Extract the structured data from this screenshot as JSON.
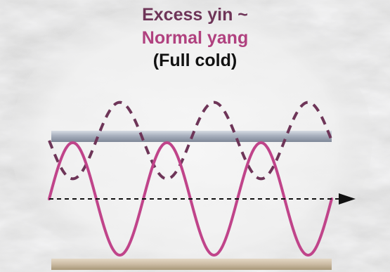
{
  "title": {
    "line1": "Excess yin ~",
    "line2": "Normal yang",
    "line3": "(Full cold)"
  },
  "colors": {
    "line1": "#6e3558",
    "line2": "#b0417f",
    "line3": "#111111",
    "yin_wave": "#c0448a",
    "yang_wave": "#6e3558",
    "upper_bar": "#a8b0be",
    "lower_bar": "#cdbfa8",
    "axis": "#111111",
    "ellipse": "#f2f2f2"
  },
  "waves": {
    "yin": {
      "style": "solid",
      "cycles": 3,
      "relative_amplitude": 1.0
    },
    "yang": {
      "style": "dashed",
      "cycles": 3,
      "relative_amplitude": 0.68
    }
  },
  "axis": {
    "style": "dashed",
    "arrow": "right"
  }
}
